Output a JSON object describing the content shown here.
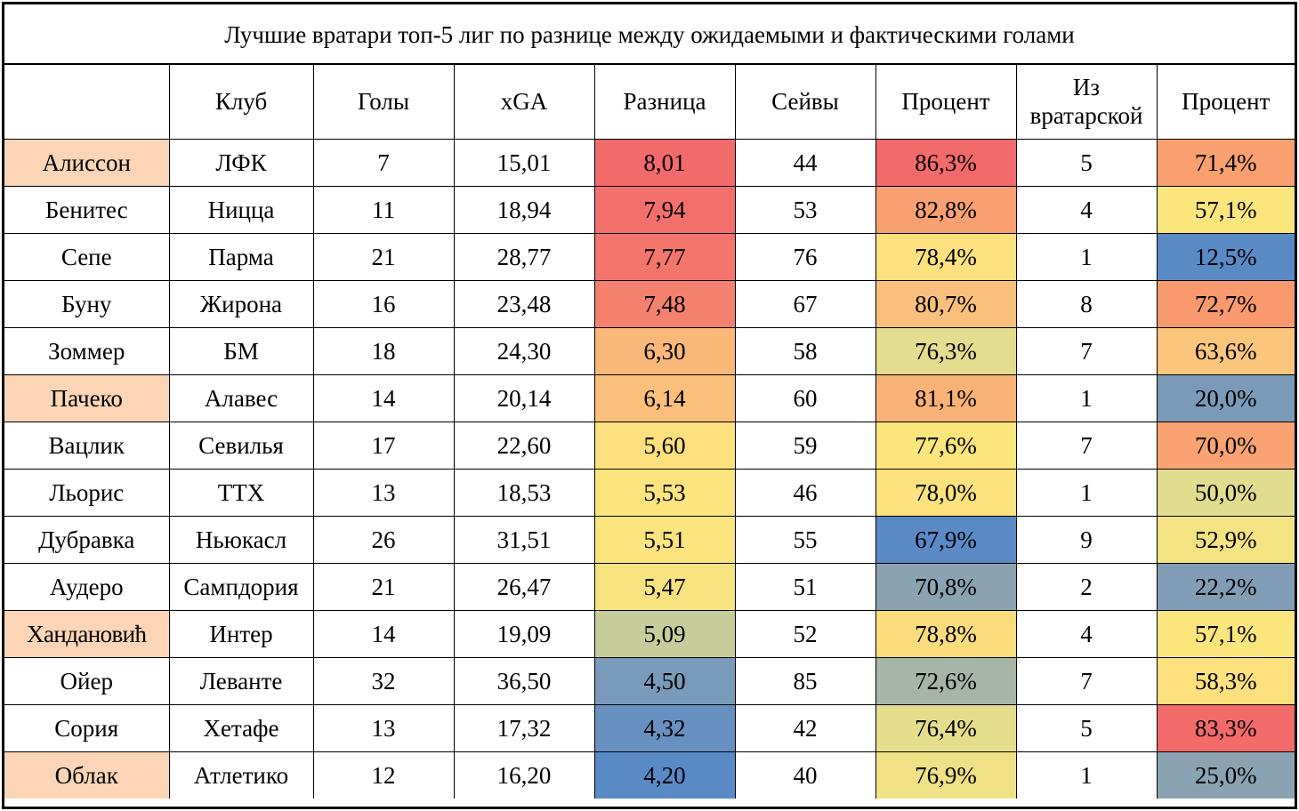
{
  "title": "Лучшие вратари топ-5 лиг по разнице между ожидаемыми и фактическими голами",
  "headers": [
    "",
    "Клуб",
    "Голы",
    "xGA",
    "Разница",
    "Сейвы",
    "Процент",
    "Из вратарской",
    "Процент"
  ],
  "highlight_color": "#fbd5b5",
  "rows": [
    {
      "name": "Алиссон",
      "highlight": true,
      "club": "ЛФК",
      "goals": "7",
      "xga": "15,01",
      "diff": "8,01",
      "diff_color": "#f26a6a",
      "saves": "44",
      "pct": "86,3%",
      "pct_color": "#f26a6a",
      "box": "5",
      "box_pct": "71,4%",
      "box_pct_color": "#f8a070"
    },
    {
      "name": "Бенитес",
      "highlight": false,
      "club": "Ницца",
      "goals": "11",
      "xga": "18,94",
      "diff": "7,94",
      "diff_color": "#f36f6b",
      "saves": "53",
      "pct": "82,8%",
      "pct_color": "#f8a070",
      "box": "4",
      "box_pct": "57,1%",
      "box_pct_color": "#fbe57d"
    },
    {
      "name": "Сепе",
      "highlight": false,
      "club": "Парма",
      "goals": "21",
      "xga": "28,77",
      "diff": "7,77",
      "diff_color": "#f3756c",
      "saves": "76",
      "pct": "78,4%",
      "pct_color": "#fbe17d",
      "box": "1",
      "box_pct": "12,5%",
      "box_pct_color": "#5a8ac6"
    },
    {
      "name": "Буну",
      "highlight": false,
      "club": "Жирона",
      "goals": "16",
      "xga": "23,48",
      "diff": "7,48",
      "diff_color": "#f4806e",
      "saves": "67",
      "pct": "80,7%",
      "pct_color": "#fabf7b",
      "box": "8",
      "box_pct": "72,7%",
      "box_pct_color": "#f8996e"
    },
    {
      "name": "Зоммер",
      "highlight": false,
      "club": "БМ",
      "goals": "18",
      "xga": "24,30",
      "diff": "6,30",
      "diff_color": "#f9b778",
      "saves": "58",
      "pct": "76,3%",
      "pct_color": "#e4dc8e",
      "box": "7",
      "box_pct": "63,6%",
      "box_pct_color": "#fbc57b"
    },
    {
      "name": "Пачеко",
      "highlight": true,
      "club": "Алавес",
      "goals": "14",
      "xga": "20,14",
      "diff": "6,14",
      "diff_color": "#fabf7a",
      "saves": "60",
      "pct": "81,1%",
      "pct_color": "#f9b276",
      "box": "1",
      "box_pct": "20,0%",
      "box_pct_color": "#7a9ab8"
    },
    {
      "name": "Вацлик",
      "highlight": false,
      "club": "Севилья",
      "goals": "17",
      "xga": "22,60",
      "diff": "5,60",
      "diff_color": "#fbe07d",
      "saves": "59",
      "pct": "77,6%",
      "pct_color": "#fbe57d",
      "box": "7",
      "box_pct": "70,0%",
      "box_pct_color": "#f8a371"
    },
    {
      "name": "Льорис",
      "highlight": false,
      "club": "ТТХ",
      "goals": "13",
      "xga": "18,53",
      "diff": "5,53",
      "diff_color": "#fbe47d",
      "saves": "46",
      "pct": "78,0%",
      "pct_color": "#fbe27d",
      "box": "1",
      "box_pct": "50,0%",
      "box_pct_color": "#e2dc8f"
    },
    {
      "name": "Дубравка",
      "highlight": false,
      "club": "Ньюкасл",
      "goals": "26",
      "xga": "31,51",
      "diff": "5,51",
      "diff_color": "#fbe47e",
      "saves": "55",
      "pct": "67,9%",
      "pct_color": "#5a8ac6",
      "box": "9",
      "box_pct": "52,9%",
      "box_pct_color": "#f3e383"
    },
    {
      "name": "Аудеро",
      "highlight": false,
      "club": "Сампдория",
      "goals": "21",
      "xga": "26,47",
      "diff": "5,47",
      "diff_color": "#f6e27f",
      "saves": "51",
      "pct": "70,8%",
      "pct_color": "#8aa3b3",
      "box": "2",
      "box_pct": "22,2%",
      "box_pct_color": "#819db5"
    },
    {
      "name": "Хандановић",
      "highlight": true,
      "club": "Интер",
      "goals": "14",
      "xga": "19,09",
      "diff": "5,09",
      "diff_color": "#c8cc9b",
      "saves": "52",
      "pct": "78,8%",
      "pct_color": "#fbdc7d",
      "box": "4",
      "box_pct": "57,1%",
      "box_pct_color": "#fbe57d"
    },
    {
      "name": "Ойер",
      "highlight": false,
      "club": "Леванте",
      "goals": "32",
      "xga": "36,50",
      "diff": "4,50",
      "diff_color": "#7a9ab9",
      "saves": "85",
      "pct": "72,6%",
      "pct_color": "#a7b5a7",
      "box": "7",
      "box_pct": "58,3%",
      "box_pct_color": "#fbe07d"
    },
    {
      "name": "Сория",
      "highlight": false,
      "club": "Хетафе",
      "goals": "13",
      "xga": "17,32",
      "diff": "4,32",
      "diff_color": "#6890c0",
      "saves": "42",
      "pct": "76,4%",
      "pct_color": "#e6dd8d",
      "box": "5",
      "box_pct": "83,3%",
      "box_pct_color": "#f26a6a"
    },
    {
      "name": "Облак",
      "highlight": true,
      "club": "Атлетико",
      "goals": "12",
      "xga": "16,20",
      "diff": "4,20",
      "diff_color": "#5a8ac6",
      "saves": "40",
      "pct": "76,9%",
      "pct_color": "#f0e186",
      "box": "1",
      "box_pct": "25,0%",
      "box_pct_color": "#8aa3b3"
    }
  ]
}
